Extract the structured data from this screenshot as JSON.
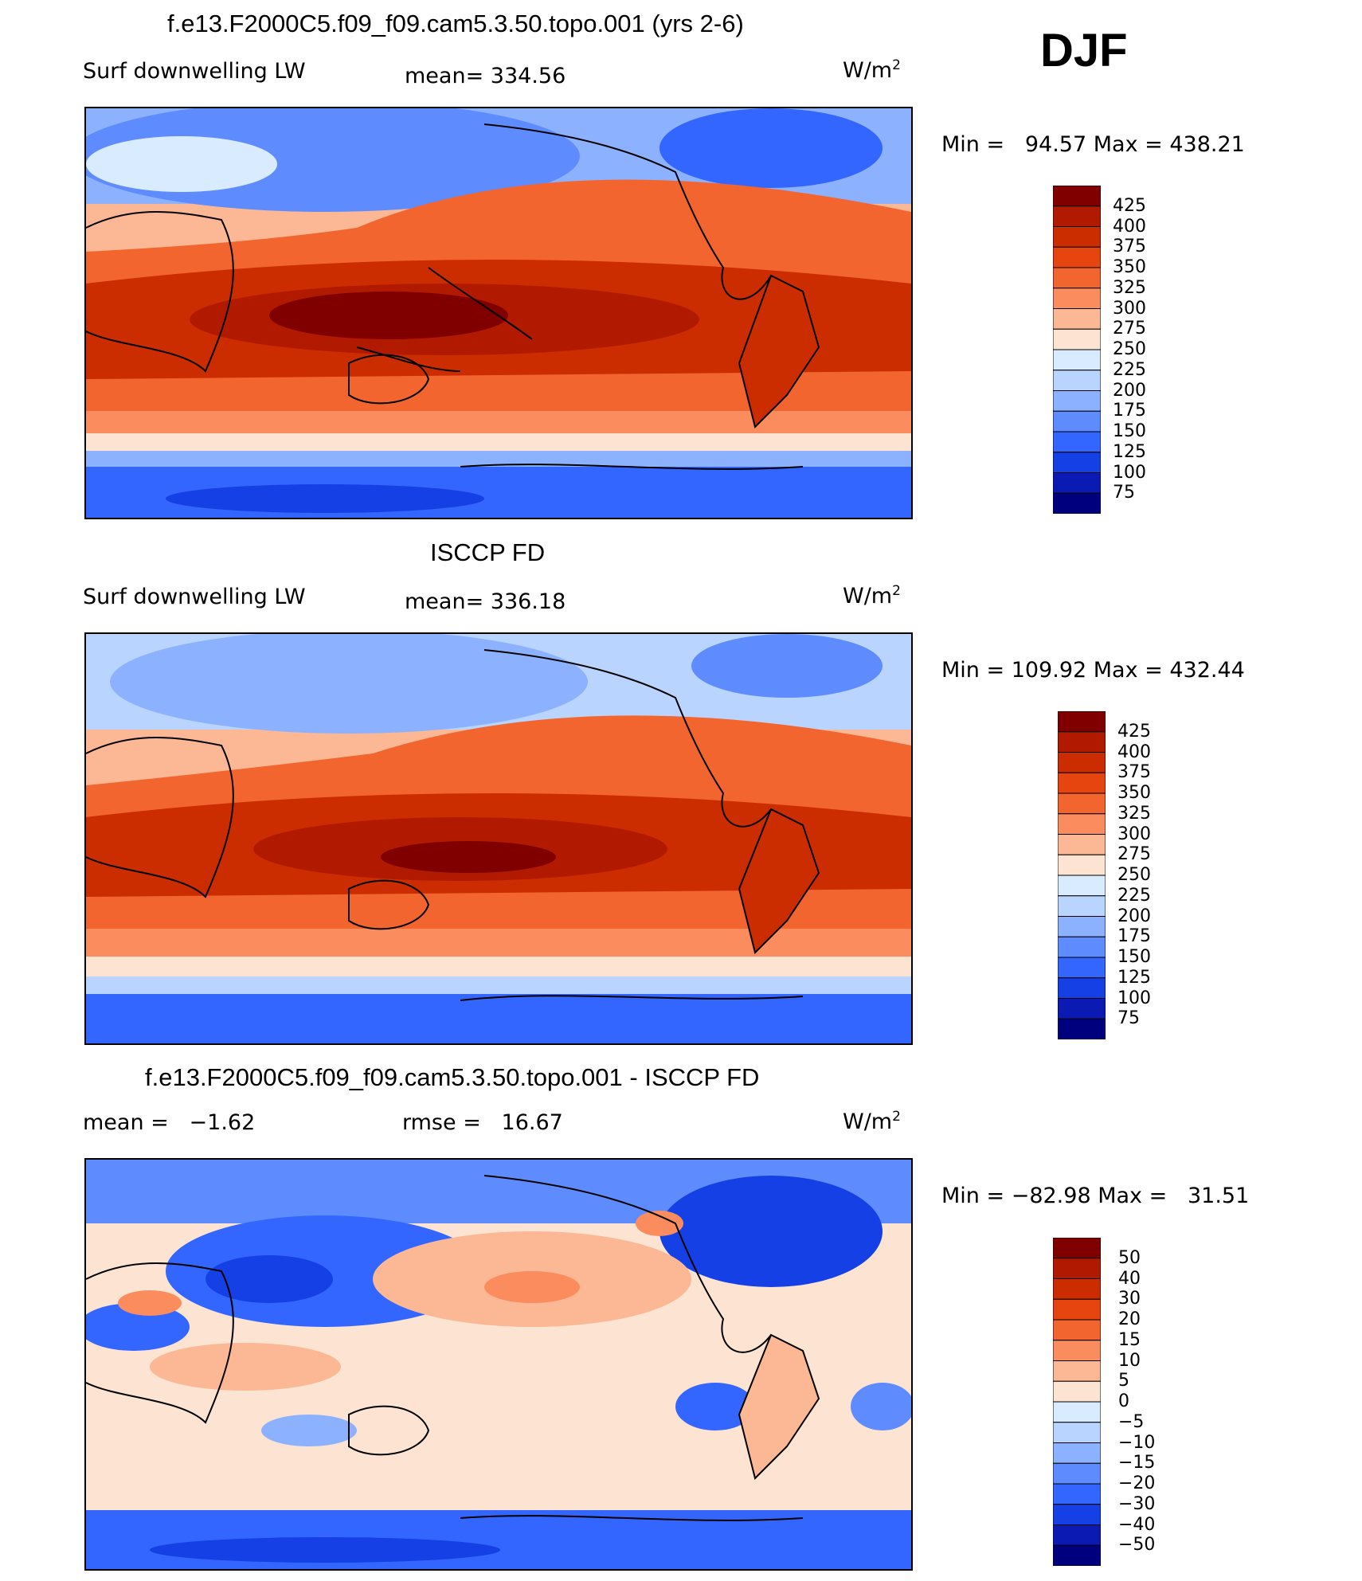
{
  "season": "DJF",
  "units_text": "W/m",
  "units_sup": "2",
  "panels": [
    {
      "title": "f.e13.F2000C5.f09_f09.cam5.3.50.topo.001 (yrs 2-6)",
      "left_label": "Surf downwelling LW",
      "center_label": "mean= 334.56",
      "minmax": "Min =   94.57 Max = 438.21"
    },
    {
      "title": "ISCCP FD",
      "left_label": "Surf downwelling LW",
      "center_label": "mean= 336.18",
      "minmax": "Min = 109.92 Max = 432.44"
    },
    {
      "title": "f.e13.F2000C5.f09_f09.cam5.3.50.topo.001 - ISCCP FD",
      "left_label": "mean =   −1.62",
      "center_label": "rmse =   16.67",
      "minmax": "Min = −82.98 Max =   31.51"
    }
  ],
  "colorbars": {
    "absolute": {
      "labels": [
        "425",
        "400",
        "375",
        "350",
        "325",
        "300",
        "275",
        "250",
        "225",
        "200",
        "175",
        "150",
        "125",
        "100",
        "75"
      ],
      "colors": [
        "#800000",
        "#b21a00",
        "#cc2d00",
        "#e6450f",
        "#f2652e",
        "#fa8c5e",
        "#fcb894",
        "#fde3d2",
        "#d9ecff",
        "#b8d4ff",
        "#8cb2ff",
        "#5e8cff",
        "#3366ff",
        "#1440e6",
        "#0a1ab3",
        "#00007f"
      ]
    },
    "difference": {
      "labels": [
        "50",
        "40",
        "30",
        "20",
        "15",
        "10",
        "5",
        "0",
        "−5",
        "−10",
        "−15",
        "−20",
        "−30",
        "−40",
        "−50"
      ],
      "colors": [
        "#800000",
        "#b21a00",
        "#cc2d00",
        "#e6450f",
        "#f2652e",
        "#fa8c5e",
        "#fcb894",
        "#fde3d2",
        "#d9ecff",
        "#b8d4ff",
        "#8cb2ff",
        "#5e8cff",
        "#3366ff",
        "#1440e6",
        "#0a1ab3",
        "#00007f"
      ]
    }
  }
}
